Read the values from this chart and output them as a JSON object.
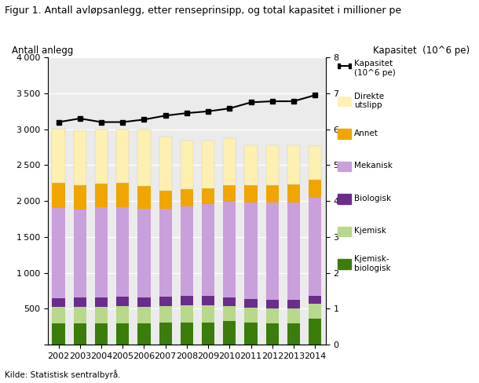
{
  "years": [
    2002,
    2003,
    2004,
    2005,
    2006,
    2007,
    2008,
    2009,
    2010,
    2011,
    2012,
    2013,
    2014
  ],
  "kjemisk_biologisk": [
    300,
    295,
    295,
    295,
    300,
    305,
    310,
    310,
    325,
    305,
    295,
    295,
    360
  ],
  "kjemisk": [
    230,
    230,
    235,
    240,
    225,
    230,
    235,
    235,
    215,
    215,
    215,
    215,
    215
  ],
  "biologisk": [
    120,
    130,
    130,
    135,
    130,
    130,
    130,
    130,
    120,
    120,
    120,
    115,
    110
  ],
  "mekanisk": [
    1250,
    1230,
    1250,
    1250,
    1240,
    1230,
    1250,
    1280,
    1330,
    1340,
    1350,
    1350,
    1360
  ],
  "annet": [
    350,
    340,
    335,
    330,
    320,
    250,
    240,
    225,
    230,
    240,
    245,
    260,
    255
  ],
  "direkte_utslipp": [
    760,
    760,
    750,
    750,
    780,
    750,
    680,
    660,
    660,
    555,
    550,
    540,
    465
  ],
  "kapasitet_line": [
    6.2,
    6.3,
    6.2,
    6.2,
    6.27,
    6.38,
    6.45,
    6.5,
    6.58,
    6.75,
    6.78,
    6.78,
    6.95
  ],
  "bar_width": 0.6,
  "ylim_left": [
    0,
    4000
  ],
  "ylim_right": [
    0,
    8
  ],
  "yticks_left": [
    0,
    500,
    1000,
    1500,
    2000,
    2500,
    3000,
    3500,
    4000
  ],
  "yticks_right": [
    0,
    1,
    2,
    3,
    4,
    5,
    6,
    7,
    8
  ],
  "colors": {
    "kjemisk_biologisk": "#3a7d0a",
    "kjemisk": "#b8d88b",
    "biologisk": "#6b2d8b",
    "mekanisk": "#c9a0dc",
    "annet": "#f0a500",
    "direkte_utslipp": "#fdf0b0"
  },
  "title": "Figur 1. Antall avløpsanlegg, etter renseprinsipp, og total kapasitet i millioner pe",
  "ylabel_left": "Antall anlegg",
  "ylabel_right": "Kapasitet  (10^6 pe)",
  "source": "Kilde: Statistisk sentralbyrå.",
  "background_color": "#ebebeb"
}
